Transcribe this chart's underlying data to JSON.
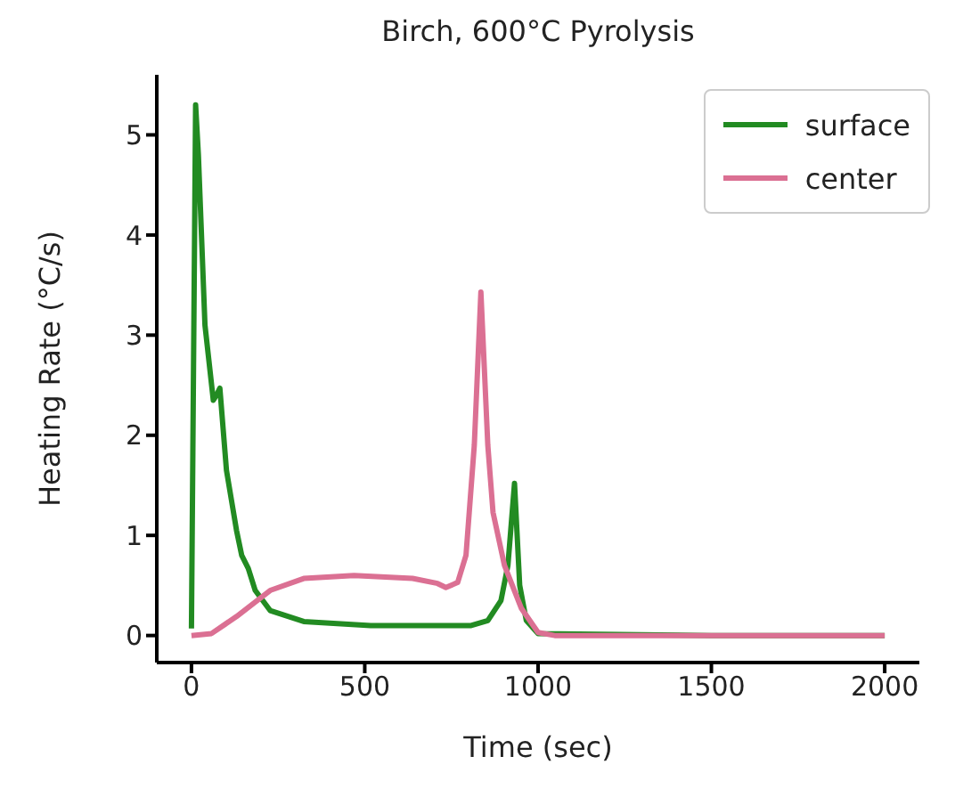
{
  "chart_data": {
    "type": "line",
    "title": "Birch, 600°C Pyrolysis",
    "xlabel": "Time (sec)",
    "ylabel": "Heating Rate (°C/s)",
    "xlim": [
      -100,
      2100
    ],
    "xticks": [
      0,
      500,
      1000,
      1500,
      2000
    ],
    "ylim": [
      -0.27,
      5.6
    ],
    "yticks": [
      0,
      1,
      2,
      3,
      4,
      5
    ],
    "grid": false,
    "legend": "top right",
    "marker": "none",
    "line_style": "solid",
    "series": [
      {
        "name": "surface",
        "color": "#228b22",
        "x": [
          0,
          12,
          20,
          39,
          63,
          72,
          82,
          101,
          130,
          145,
          164,
          184,
          227,
          324,
          517,
          807,
          855,
          893,
          913,
          932,
          947,
          966,
          1000,
          1500,
          2000
        ],
        "values": [
          0.07,
          5.3,
          4.8,
          3.1,
          2.35,
          2.4,
          2.47,
          1.65,
          1.05,
          0.8,
          0.67,
          0.45,
          0.25,
          0.14,
          0.1,
          0.1,
          0.15,
          0.35,
          0.7,
          1.52,
          0.5,
          0.15,
          0.02,
          0,
          0
        ]
      },
      {
        "name": "center",
        "color": "#db7093",
        "x": [
          0,
          58,
          130,
          227,
          324,
          469,
          638,
          710,
          734,
          768,
          792,
          816,
          835,
          855,
          870,
          903,
          952,
          1000,
          1048,
          1500,
          2000
        ],
        "values": [
          0,
          0.02,
          0.19,
          0.45,
          0.57,
          0.6,
          0.57,
          0.52,
          0.48,
          0.53,
          0.8,
          1.9,
          3.43,
          1.9,
          1.23,
          0.7,
          0.27,
          0.03,
          0,
          0,
          0
        ]
      }
    ]
  }
}
